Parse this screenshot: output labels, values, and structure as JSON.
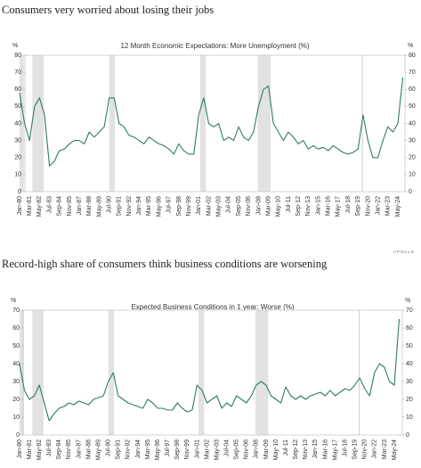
{
  "chart_data": [
    {
      "type": "line",
      "title": "Consumers very worried about losing their jobs",
      "subtitle": "12 Month Economic Expectations: More Unemployment (%)",
      "ylabel": "%",
      "y2label": "%",
      "categories": [
        "Jan-80",
        null,
        "Mar-81",
        null,
        "May-82",
        null,
        "Jul-83",
        null,
        "Sep-84",
        null,
        "Nov-85",
        null,
        "Jan-87",
        null,
        "Mar-88",
        null,
        "May-89",
        null,
        "Jul-90",
        null,
        "Sep-91",
        null,
        "Nov-92",
        null,
        "Jan-94",
        null,
        "Mar-95",
        null,
        "May-96",
        null,
        "Jul-97",
        null,
        "Sep-98",
        null,
        "Nov-99",
        null,
        "Jan-01",
        null,
        "Mar-02",
        null,
        "May-03",
        null,
        "Jul-04",
        null,
        "Sep-05",
        null,
        "Nov-06",
        null,
        "Jan-08",
        null,
        "Mar-09",
        null,
        "May-10",
        null,
        "Jul-11",
        null,
        "Sep-12",
        null,
        "Nov-13",
        null,
        "Jan-15",
        null,
        "Mar-16",
        null,
        "May-17",
        null,
        "Jul-18",
        null,
        "Sep-19",
        null,
        "Nov-20",
        null,
        "Jan-22",
        null,
        "Mar-23",
        null,
        "May-24",
        null
      ],
      "series": [
        {
          "name": "More Unemployment",
          "color": "#2e7d5b",
          "values": [
            58,
            40,
            30,
            50,
            55,
            45,
            15,
            18,
            24,
            25,
            28,
            30,
            30,
            28,
            35,
            32,
            35,
            38,
            55,
            55,
            40,
            38,
            33,
            32,
            30,
            28,
            32,
            30,
            28,
            27,
            25,
            22,
            28,
            24,
            22,
            22,
            45,
            55,
            40,
            38,
            40,
            30,
            32,
            30,
            38,
            32,
            30,
            35,
            50,
            60,
            62,
            40,
            35,
            30,
            35,
            32,
            28,
            30,
            25,
            27,
            25,
            26,
            24,
            27,
            25,
            23,
            22,
            23,
            25,
            45,
            30,
            20,
            20,
            30,
            38,
            35,
            40,
            67
          ]
        }
      ],
      "ylim": [
        0,
        80
      ],
      "yticks": [
        0,
        10,
        20,
        30,
        40,
        50,
        60,
        70,
        80
      ],
      "y2lim": [
        0,
        80
      ],
      "y2ticks": [
        0,
        10,
        20,
        30,
        40,
        50,
        60,
        70,
        80
      ]
    },
    {
      "type": "line",
      "title": "Record-high share of consumers think business conditions are worsening",
      "subtitle": "Expected Business Conditions in 1 year: Worse (%)",
      "ylabel": "%",
      "y2label": "%",
      "categories": [
        "Jan-80",
        null,
        "Mar-81",
        null,
        "May-82",
        null,
        "Jul-83",
        null,
        "Sep-84",
        null,
        "Nov-85",
        null,
        "Jan-87",
        null,
        "Mar-88",
        null,
        "May-89",
        null,
        "Jul-90",
        null,
        "Sep-91",
        null,
        "Nov-92",
        null,
        "Jan-94",
        null,
        "Mar-95",
        null,
        "May-96",
        null,
        "Jul-97",
        null,
        "Sep-98",
        null,
        "Nov-99",
        null,
        "Jan-01",
        null,
        "Mar-02",
        null,
        "May-03",
        null,
        "Jul-04",
        null,
        "Sep-05",
        null,
        "Nov-06",
        null,
        "Jan-08",
        null,
        "Mar-09",
        null,
        "May-10",
        null,
        "Jul-11",
        null,
        "Sep-12",
        null,
        "Nov-13",
        null,
        "Jan-15",
        null,
        "Mar-16",
        null,
        "May-17",
        null,
        "Jul-18",
        null,
        "Sep-19",
        null,
        "Nov-20",
        null,
        "Jan-22",
        null,
        "Mar-23",
        null,
        "May-24",
        null
      ],
      "series": [
        {
          "name": "Worse",
          "color": "#2e7d5b",
          "values": [
            40,
            25,
            20,
            22,
            28,
            18,
            8,
            12,
            15,
            16,
            18,
            17,
            19,
            18,
            17,
            20,
            21,
            22,
            30,
            35,
            22,
            20,
            18,
            17,
            16,
            15,
            20,
            18,
            15,
            15,
            14,
            14,
            18,
            15,
            13,
            14,
            28,
            25,
            18,
            20,
            22,
            15,
            18,
            16,
            22,
            20,
            18,
            22,
            28,
            30,
            28,
            22,
            20,
            18,
            27,
            22,
            20,
            22,
            20,
            22,
            23,
            24,
            22,
            25,
            22,
            24,
            26,
            25,
            28,
            32,
            26,
            22,
            35,
            40,
            38,
            30,
            28,
            65
          ]
        }
      ],
      "ylim": [
        0,
        70
      ],
      "yticks": [
        0,
        10,
        20,
        30,
        40,
        50,
        60,
        70
      ],
      "y2lim": [
        0,
        70
      ],
      "y2ticks": [
        0,
        10,
        20,
        30,
        40,
        50,
        60,
        70
      ]
    }
  ],
  "logo": "APOLLO"
}
